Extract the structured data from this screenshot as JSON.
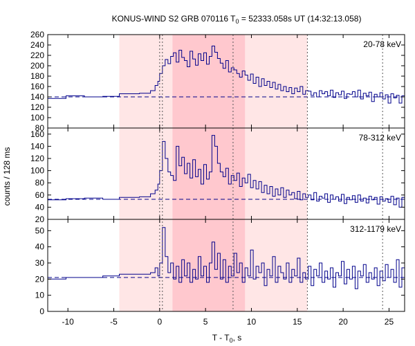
{
  "chart_data": {
    "type": "line",
    "title": "KONUS-WIND S2 GRB 070116 T",
    "title_sub": "0",
    "title_rest": " = 52333.058s UT (14:32:13.058)",
    "xlabel": "T - T",
    "xlabel_sub": "0",
    "xlabel_rest": ", s",
    "ylabel": "counts / 128 ms",
    "xlim": [
      -12.2,
      26.7
    ],
    "xticks": [
      -10,
      -5,
      0,
      5,
      10,
      15,
      20,
      25
    ],
    "grid": false,
    "colors": {
      "series": "#00008b",
      "background_band": "#ffe6e6",
      "dark_band": "#ffc8ce",
      "dotted_lines": "#555555"
    },
    "background_interval": [
      -4.4,
      16.1
    ],
    "highlight_interval": [
      1.4,
      9.3
    ],
    "vertical_markers": [
      0.0,
      0.3,
      8.0,
      16.1,
      24.3
    ],
    "panels": [
      {
        "label": "20-78 keV",
        "ylim": [
          80,
          260
        ],
        "yticks": [
          80,
          100,
          120,
          140,
          160,
          180,
          200,
          220,
          240,
          260
        ],
        "background_level": 140,
        "series": {
          "x": [
            -12.2,
            -10.2,
            -8.2,
            -6.2,
            -4.4,
            -2.2,
            -1.0,
            -0.5,
            -0.2,
            0.0,
            0.3,
            0.6,
            0.9,
            1.2,
            1.5,
            1.8,
            2.1,
            2.4,
            2.7,
            3.0,
            3.3,
            3.6,
            3.9,
            4.2,
            4.5,
            4.8,
            5.1,
            5.4,
            5.7,
            6.0,
            6.3,
            6.6,
            6.9,
            7.2,
            7.5,
            7.8,
            8.1,
            8.4,
            8.7,
            9.0,
            9.3,
            9.6,
            9.9,
            10.2,
            10.5,
            10.8,
            11.1,
            11.4,
            11.7,
            12.0,
            12.3,
            12.6,
            12.9,
            13.2,
            13.5,
            13.8,
            14.1,
            14.4,
            14.7,
            15.0,
            15.3,
            15.6,
            15.9,
            16.2,
            16.5,
            16.8,
            17.1,
            17.4,
            17.7,
            18.0,
            18.3,
            18.6,
            18.9,
            19.2,
            19.5,
            19.8,
            20.1,
            20.4,
            20.7,
            21.0,
            21.3,
            21.6,
            21.9,
            22.2,
            22.5,
            22.8,
            23.1,
            23.4,
            23.7,
            24.0,
            24.3,
            24.6,
            24.9,
            25.2,
            25.5,
            25.8,
            26.1,
            26.4
          ],
          "y": [
            137,
            142,
            140,
            141,
            146,
            147,
            152,
            162,
            170,
            185,
            200,
            212,
            204,
            218,
            225,
            207,
            230,
            216,
            210,
            198,
            228,
            213,
            201,
            223,
            210,
            225,
            203,
            218,
            238,
            226,
            214,
            205,
            195,
            210,
            188,
            196,
            192,
            185,
            178,
            190,
            182,
            172,
            184,
            166,
            178,
            160,
            175,
            162,
            170,
            158,
            168,
            155,
            164,
            152,
            160,
            150,
            158,
            146,
            157,
            150,
            160,
            145,
            152,
            151,
            143,
            148,
            140,
            152,
            146,
            150,
            142,
            153,
            139,
            148,
            144,
            151,
            137,
            146,
            145,
            150,
            140,
            153,
            136,
            147,
            142,
            149,
            131,
            145,
            140,
            148,
            136,
            144,
            128,
            146,
            138,
            143,
            128,
            142
          ]
        }
      },
      {
        "label": "78-312 keV",
        "ylim": [
          20,
          170
        ],
        "yticks": [
          20,
          40,
          60,
          80,
          100,
          120,
          140,
          160
        ],
        "background_level": 53,
        "series": {
          "x": [
            -12.2,
            -10.2,
            -8.2,
            -6.2,
            -4.4,
            -2.2,
            -1.0,
            -0.5,
            -0.2,
            0.0,
            0.3,
            0.6,
            0.9,
            1.2,
            1.5,
            1.8,
            2.1,
            2.4,
            2.7,
            3.0,
            3.3,
            3.6,
            3.9,
            4.2,
            4.5,
            4.8,
            5.1,
            5.4,
            5.7,
            6.0,
            6.3,
            6.6,
            6.9,
            7.2,
            7.5,
            7.8,
            8.1,
            8.4,
            8.7,
            9.0,
            9.3,
            9.6,
            9.9,
            10.2,
            10.5,
            10.8,
            11.1,
            11.4,
            11.7,
            12.0,
            12.3,
            12.6,
            12.9,
            13.2,
            13.5,
            13.8,
            14.1,
            14.4,
            14.7,
            15.0,
            15.3,
            15.6,
            15.9,
            16.2,
            16.5,
            16.8,
            17.1,
            17.4,
            17.7,
            18.0,
            18.3,
            18.6,
            18.9,
            19.2,
            19.5,
            19.8,
            20.1,
            20.4,
            20.7,
            21.0,
            21.3,
            21.6,
            21.9,
            22.2,
            22.5,
            22.8,
            23.1,
            23.4,
            23.7,
            24.0,
            24.3,
            24.6,
            24.9,
            25.2,
            25.5,
            25.8,
            26.1,
            26.4
          ],
          "y": [
            52,
            54,
            55,
            53,
            56,
            57,
            62,
            68,
            78,
            100,
            148,
            120,
            98,
            92,
            84,
            140,
            108,
            122,
            95,
            112,
            88,
            118,
            90,
            102,
            78,
            110,
            86,
            98,
            158,
            140,
            112,
            98,
            90,
            104,
            78,
            92,
            84,
            96,
            74,
            88,
            80,
            94,
            72,
            84,
            70,
            82,
            64,
            76,
            62,
            74,
            58,
            70,
            60,
            72,
            56,
            68,
            60,
            64,
            54,
            66,
            52,
            62,
            56,
            60,
            52,
            64,
            50,
            58,
            55,
            62,
            48,
            60,
            53,
            57,
            50,
            61,
            46,
            56,
            52,
            59,
            48,
            60,
            50,
            55,
            47,
            58,
            52,
            56,
            45,
            57,
            50,
            54,
            48,
            58,
            44,
            55,
            40,
            56
          ]
        }
      },
      {
        "label": "312-1179 keV",
        "ylim": [
          0,
          57
        ],
        "yticks": [
          0,
          10,
          20,
          30,
          40,
          50
        ],
        "background_level": 21,
        "series": {
          "x": [
            -12.2,
            -10.2,
            -8.2,
            -6.2,
            -4.4,
            -2.2,
            -1.0,
            -0.5,
            -0.2,
            0.0,
            0.3,
            0.6,
            0.9,
            1.2,
            1.5,
            1.8,
            2.1,
            2.4,
            2.7,
            3.0,
            3.3,
            3.6,
            3.9,
            4.2,
            4.5,
            4.8,
            5.1,
            5.4,
            5.7,
            6.0,
            6.3,
            6.6,
            6.9,
            7.2,
            7.5,
            7.8,
            8.1,
            8.4,
            8.7,
            9.0,
            9.3,
            9.6,
            9.9,
            10.2,
            10.5,
            10.8,
            11.1,
            11.4,
            11.7,
            12.0,
            12.3,
            12.6,
            12.9,
            13.2,
            13.5,
            13.8,
            14.1,
            14.4,
            14.7,
            15.0,
            15.3,
            15.6,
            15.9,
            16.2,
            16.5,
            16.8,
            17.1,
            17.4,
            17.7,
            18.0,
            18.3,
            18.6,
            18.9,
            19.2,
            19.5,
            19.8,
            20.1,
            20.4,
            20.7,
            21.0,
            21.3,
            21.6,
            21.9,
            22.2,
            22.5,
            22.8,
            23.1,
            23.4,
            23.7,
            24.0,
            24.3,
            24.6,
            24.9,
            25.2,
            25.5,
            25.8,
            26.1,
            26.4
          ],
          "y": [
            20,
            21,
            21,
            22,
            23,
            23,
            24,
            27,
            22,
            30,
            52,
            34,
            24,
            30,
            20,
            28,
            18,
            32,
            22,
            30,
            18,
            26,
            20,
            34,
            22,
            28,
            18,
            30,
            43,
            26,
            36,
            20,
            32,
            18,
            28,
            22,
            36,
            24,
            30,
            18,
            27,
            22,
            38,
            20,
            28,
            24,
            30,
            16,
            26,
            22,
            34,
            18,
            28,
            24,
            20,
            30,
            18,
            26,
            22,
            33,
            18,
            24,
            20,
            28,
            16,
            26,
            22,
            30,
            18,
            25,
            20,
            27,
            15,
            24,
            22,
            31,
            17,
            26,
            20,
            28,
            14,
            25,
            22,
            29,
            18,
            24,
            20,
            27,
            16,
            25,
            19,
            29,
            21,
            26,
            18,
            32,
            15,
            27
          ]
        }
      }
    ]
  }
}
